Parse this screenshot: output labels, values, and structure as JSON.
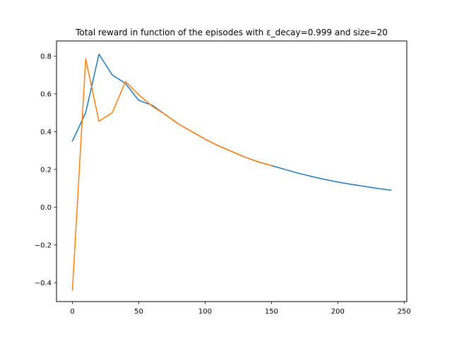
{
  "chart_data": {
    "type": "line",
    "title": "Total reward in function of the episodes with ε_decay=0.999 and size=20",
    "xlabel": "",
    "ylabel": "",
    "xlim": [
      -12,
      252
    ],
    "ylim": [
      -0.5,
      0.88
    ],
    "grid": false,
    "x_ticks": [
      0,
      50,
      100,
      150,
      200,
      250
    ],
    "y_ticks": [
      -0.4,
      -0.2,
      0.0,
      0.2,
      0.4,
      0.6,
      0.8
    ],
    "x_tick_labels": [
      "0",
      "50",
      "100",
      "150",
      "200",
      "250"
    ],
    "y_tick_labels": [
      "−0.4",
      "−0.2",
      "0.0",
      "0.2",
      "0.4",
      "0.6",
      "0.8"
    ],
    "series": [
      {
        "color": "#1f77b4",
        "x": [
          0,
          10,
          20,
          30,
          40,
          50,
          60,
          70,
          80,
          90,
          100,
          110,
          120,
          130,
          140,
          150,
          160,
          170,
          180,
          190,
          200,
          210,
          220,
          230,
          240
        ],
        "y": [
          0.35,
          0.5,
          0.81,
          0.7,
          0.655,
          0.565,
          0.54,
          0.49,
          0.44,
          0.4,
          0.36,
          0.325,
          0.295,
          0.265,
          0.24,
          0.22,
          0.2,
          0.18,
          0.163,
          0.147,
          0.133,
          0.121,
          0.11,
          0.099,
          0.09
        ]
      },
      {
        "color": "#ff7f0e",
        "x": [
          0,
          10,
          20,
          30,
          40,
          50,
          60,
          70,
          80,
          90,
          100,
          110,
          120,
          130,
          140,
          150
        ],
        "y": [
          -0.44,
          0.785,
          0.455,
          0.5,
          0.665,
          0.595,
          0.535,
          0.49,
          0.44,
          0.4,
          0.36,
          0.325,
          0.295,
          0.265,
          0.24,
          0.22
        ]
      }
    ]
  }
}
